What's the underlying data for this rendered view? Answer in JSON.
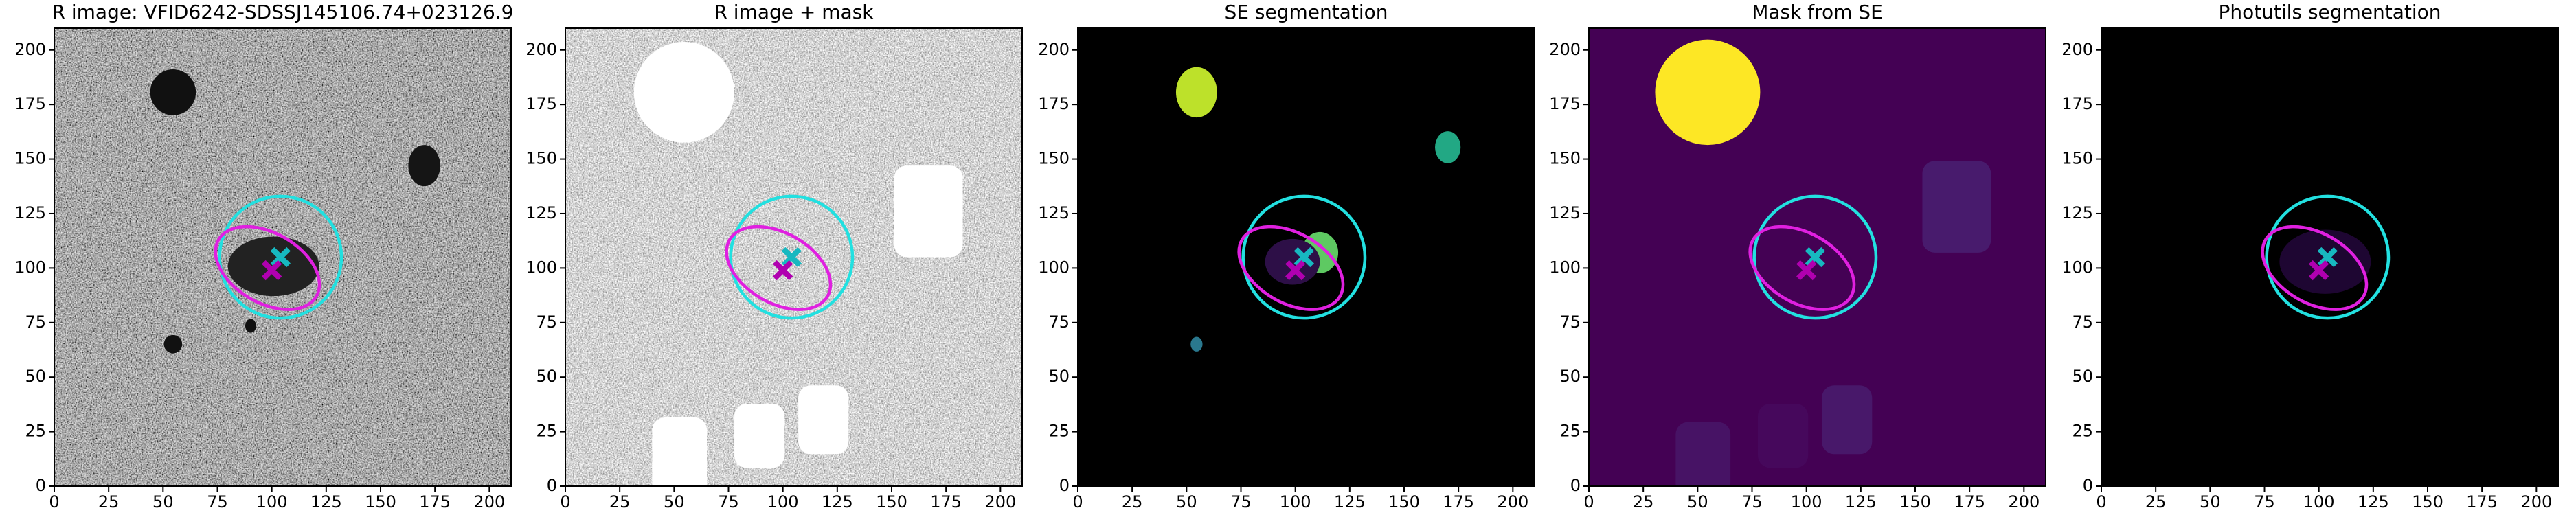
{
  "chart_data": [
    {
      "type": "image",
      "title": "R image: VFID6242-SDSSJ145106.74+023126.9",
      "xlim": [
        0,
        210
      ],
      "ylim": [
        0,
        210
      ],
      "xticks": [
        0,
        25,
        50,
        75,
        100,
        125,
        150,
        175,
        200
      ],
      "yticks": [
        0,
        25,
        50,
        75,
        100,
        125,
        150,
        175,
        200
      ],
      "circle": {
        "x": 104,
        "y": 105,
        "r": 28,
        "color": "#22e0e0"
      },
      "ellipse": {
        "x": 98,
        "y": 100,
        "rx": 26,
        "ry": 16,
        "angle": -30,
        "color": "#e020e0"
      },
      "markers": [
        {
          "x": 104,
          "y": 105,
          "color": "#17b8c0"
        },
        {
          "x": 100,
          "y": 99,
          "color": "#b000b0"
        }
      ]
    },
    {
      "type": "image",
      "title": "R image + mask",
      "xlim": [
        0,
        210
      ],
      "ylim": [
        0,
        210
      ],
      "xticks": [
        0,
        25,
        50,
        75,
        100,
        125,
        150,
        175,
        200
      ],
      "yticks": [
        0,
        25,
        50,
        75,
        100,
        125,
        150,
        175,
        200
      ],
      "circle": {
        "x": 104,
        "y": 105,
        "r": 28,
        "color": "#22e0e0"
      },
      "ellipse": {
        "x": 98,
        "y": 100,
        "rx": 26,
        "ry": 16,
        "angle": -30,
        "color": "#e020e0"
      },
      "markers": [
        {
          "x": 104,
          "y": 105,
          "color": "#17b8c0"
        },
        {
          "x": 100,
          "y": 99,
          "color": "#b000b0"
        }
      ]
    },
    {
      "type": "image",
      "title": "SE segmentation",
      "xlim": [
        0,
        210
      ],
      "ylim": [
        0,
        210
      ],
      "xticks": [
        0,
        25,
        50,
        75,
        100,
        125,
        150,
        175,
        200
      ],
      "yticks": [
        0,
        25,
        50,
        75,
        100,
        125,
        150,
        175,
        200
      ],
      "circle": {
        "x": 104,
        "y": 105,
        "r": 28,
        "color": "#22e0e0"
      },
      "ellipse": {
        "x": 98,
        "y": 100,
        "rx": 26,
        "ry": 16,
        "angle": -30,
        "color": "#e020e0"
      },
      "markers": [
        {
          "x": 104,
          "y": 105,
          "color": "#17b8c0"
        },
        {
          "x": 100,
          "y": 99,
          "color": "#b000b0"
        }
      ]
    },
    {
      "type": "image",
      "title": "Mask from SE",
      "xlim": [
        0,
        210
      ],
      "ylim": [
        0,
        210
      ],
      "xticks": [
        0,
        25,
        50,
        75,
        100,
        125,
        150,
        175,
        200
      ],
      "yticks": [
        0,
        25,
        50,
        75,
        100,
        125,
        150,
        175,
        200
      ],
      "circle": {
        "x": 104,
        "y": 105,
        "r": 28,
        "color": "#22e0e0"
      },
      "ellipse": {
        "x": 98,
        "y": 100,
        "rx": 26,
        "ry": 16,
        "angle": -30,
        "color": "#e020e0"
      },
      "markers": [
        {
          "x": 104,
          "y": 105,
          "color": "#17b8c0"
        },
        {
          "x": 100,
          "y": 99,
          "color": "#b000b0"
        }
      ]
    },
    {
      "type": "image",
      "title": "Photutils segmentation",
      "xlim": [
        0,
        210
      ],
      "ylim": [
        0,
        210
      ],
      "xticks": [
        0,
        25,
        50,
        75,
        100,
        125,
        150,
        175,
        200
      ],
      "yticks": [
        0,
        25,
        50,
        75,
        100,
        125,
        150,
        175,
        200
      ],
      "circle": {
        "x": 104,
        "y": 105,
        "r": 28,
        "color": "#22e0e0"
      },
      "ellipse": {
        "x": 98,
        "y": 100,
        "rx": 26,
        "ry": 16,
        "angle": -30,
        "color": "#e020e0"
      },
      "markers": [
        {
          "x": 104,
          "y": 105,
          "color": "#17b8c0"
        },
        {
          "x": 100,
          "y": 99,
          "color": "#b000b0"
        }
      ]
    }
  ]
}
